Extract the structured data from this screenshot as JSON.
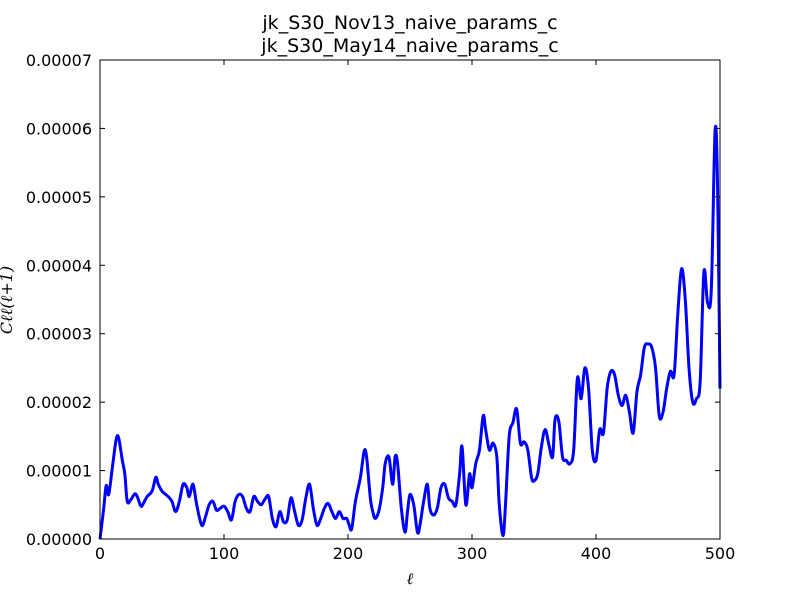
{
  "chart_data": {
    "type": "line",
    "title_lines": [
      "jk_S30_Nov13_naive_params_c",
      "jk_S30_May14_naive_params_c"
    ],
    "xlabel": "ℓ",
    "ylabel": "Cℓℓ(ℓ+1)",
    "xlim": [
      0,
      500
    ],
    "ylim": [
      0,
      7e-05
    ],
    "x_ticks": [
      0,
      100,
      200,
      300,
      400,
      500
    ],
    "x_tick_labels": [
      "0",
      "100",
      "200",
      "300",
      "400",
      "500"
    ],
    "y_ticks": [
      0,
      1e-05,
      2e-05,
      3e-05,
      4e-05,
      5e-05,
      6e-05,
      7e-05
    ],
    "y_tick_labels": [
      "0.00000",
      "0.00001",
      "0.00002",
      "0.00003",
      "0.00004",
      "0.00005",
      "0.00006",
      "0.00007"
    ],
    "grid": false,
    "series": [
      {
        "color": "#0000ff",
        "x": [
          0,
          3,
          5,
          7,
          10,
          13,
          15,
          18,
          20,
          22,
          25,
          28,
          30,
          33,
          35,
          38,
          42,
          45,
          47,
          50,
          53,
          55,
          58,
          61,
          64,
          67,
          70,
          72,
          75,
          78,
          82,
          85,
          88,
          91,
          94,
          97,
          100,
          103,
          106,
          109,
          112,
          115,
          118,
          121,
          124,
          127,
          130,
          133,
          136,
          139,
          142,
          145,
          148,
          151,
          154,
          157,
          160,
          163,
          166,
          169,
          172,
          175,
          178,
          181,
          184,
          187,
          190,
          193,
          196,
          199,
          201,
          203,
          206,
          210,
          213,
          215,
          218,
          220,
          222,
          225,
          228,
          230,
          233,
          236,
          238,
          240,
          243,
          246,
          248,
          250,
          253,
          256,
          258,
          261,
          264,
          266,
          269,
          272,
          275,
          278,
          281,
          284,
          287,
          290,
          292,
          295,
          298,
          300,
          303,
          306,
          309,
          311,
          314,
          317,
          320,
          322,
          325,
          327,
          330,
          333,
          336,
          339,
          342,
          345,
          348,
          350,
          353,
          356,
          359,
          362,
          365,
          367,
          370,
          373,
          376,
          379,
          382,
          385,
          388,
          391,
          394,
          397,
          400,
          403,
          406,
          409,
          412,
          415,
          418,
          421,
          424,
          427,
          430,
          433,
          436,
          439,
          442,
          445,
          448,
          451,
          454,
          457,
          460,
          463,
          466,
          469,
          472,
          475,
          478,
          481,
          484,
          487,
          490,
          493,
          496,
          498,
          500
        ],
        "y": [
          0.0,
          4.5e-06,
          7.8e-06,
          6.5e-06,
          1.05e-05,
          1.45e-05,
          1.48e-05,
          1.15e-05,
          9.5e-06,
          5.5e-06,
          5.8e-06,
          6.6e-06,
          6.2e-06,
          4.8e-06,
          5.2e-06,
          6.2e-06,
          7e-06,
          9e-06,
          8e-06,
          7e-06,
          6.5e-06,
          6.2e-06,
          5.5e-06,
          4e-06,
          5.5e-06,
          8e-06,
          7.5e-06,
          6.2e-06,
          8e-06,
          5e-06,
          2e-06,
          3.2e-06,
          5e-06,
          5.5e-06,
          4.2e-06,
          4.5e-06,
          4.8e-06,
          4e-06,
          2.8e-06,
          5.5e-06,
          6.5e-06,
          6.2e-06,
          4.5e-06,
          4e-06,
          6.2e-06,
          5.5e-06,
          5e-06,
          5.8e-06,
          6.2e-06,
          3e-06,
          1.8e-06,
          4e-06,
          2.5e-06,
          2.8e-06,
          6e-06,
          4e-06,
          2e-06,
          2.8e-06,
          6e-06,
          8e-06,
          4.5e-06,
          2e-06,
          3e-06,
          4.5e-06,
          5.2e-06,
          4e-06,
          3e-06,
          4e-06,
          3e-06,
          3e-06,
          2e-06,
          1.5e-06,
          5.5e-06,
          9e-06,
          1.28e-05,
          1.2e-05,
          6e-06,
          4e-06,
          3e-06,
          4.2e-06,
          7.5e-06,
          1.1e-05,
          1.2e-05,
          8e-06,
          1.2e-05,
          1.1e-05,
          4.5e-06,
          1e-06,
          4e-06,
          6.5e-06,
          5e-06,
          1e-06,
          2e-06,
          5.5e-06,
          8e-06,
          4.5e-06,
          3.5e-06,
          4.5e-06,
          7.5e-06,
          8e-06,
          6e-06,
          5.5e-06,
          5e-06,
          9.5e-06,
          1.35e-05,
          5e-06,
          9.5e-06,
          7.5e-06,
          1.1e-05,
          1.3e-05,
          1.8e-05,
          1.6e-05,
          1.3e-05,
          1.4e-05,
          1.2e-05,
          5e-06,
          5e-07,
          5e-06,
          1.5e-05,
          1.7e-05,
          1.9e-05,
          1.4e-05,
          1.42e-05,
          1.3e-05,
          9e-06,
          8.5e-06,
          9.5e-06,
          1.35e-05,
          1.6e-05,
          1.38e-05,
          1.2e-05,
          1.75e-05,
          1.72e-05,
          1.2e-05,
          1.15e-05,
          1.1e-05,
          1.3e-05,
          2.35e-05,
          2.05e-05,
          2.5e-05,
          2.2e-05,
          1.3e-05,
          1.15e-05,
          1.6e-05,
          1.55e-05,
          2.2e-05,
          2.45e-05,
          2.4e-05,
          2.1e-05,
          1.95e-05,
          2.1e-05,
          1.85e-05,
          1.55e-05,
          2.15e-05,
          2.4e-05,
          2.8e-05,
          2.85e-05,
          2.8e-05,
          2.5e-05,
          1.8e-05,
          1.85e-05,
          2.2e-05,
          2.45e-05,
          2.4e-05,
          3.3e-05,
          3.95e-05,
          3.5e-05,
          2.5e-05,
          2e-05,
          2.05e-05,
          2.3e-05,
          3.9e-05,
          3.45e-05,
          3.65e-05,
          5.95e-05,
          5.2e-05,
          2.2e-05
        ]
      }
    ]
  }
}
